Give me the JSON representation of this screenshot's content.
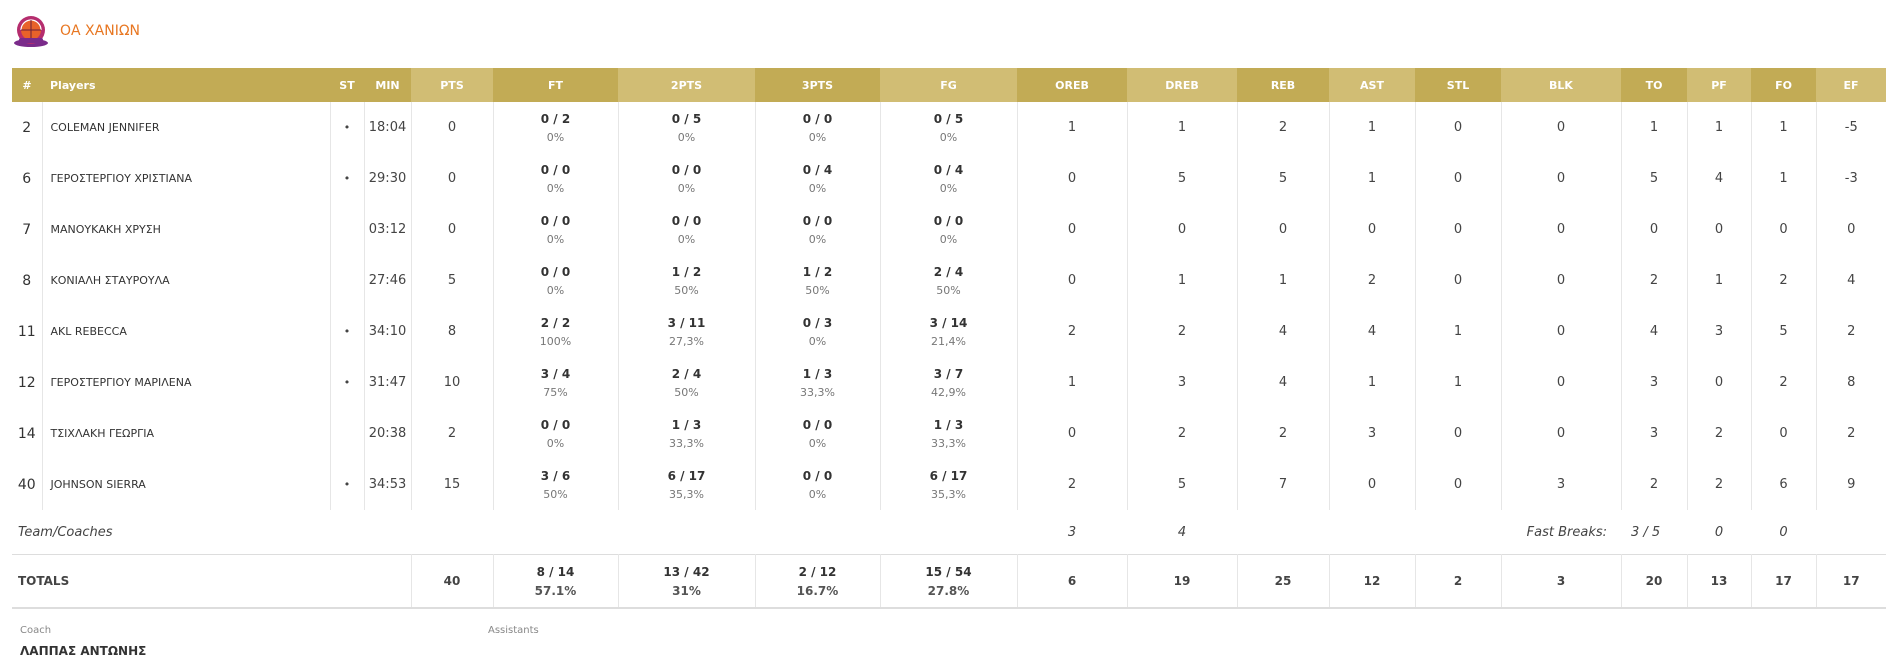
{
  "team": {
    "name": "ΟΑ ΧΑΝΙΩΝ"
  },
  "columns": [
    "#",
    "Players",
    "ST",
    "MIN",
    "PTS",
    "FT",
    "2PTS",
    "3PTS",
    "FG",
    "OREB",
    "DREB",
    "REB",
    "AST",
    "STL",
    "BLK",
    "TO",
    "PF",
    "FO",
    "EF"
  ],
  "players": [
    {
      "num": "2",
      "name": "COLEMAN JENNIFER",
      "st": "•",
      "min": "18:04",
      "pts": "0",
      "ft": "0 / 2",
      "ft_pct": "0%",
      "p2": "0 / 5",
      "p2_pct": "0%",
      "p3": "0 / 0",
      "p3_pct": "0%",
      "fg": "0 / 5",
      "fg_pct": "0%",
      "oreb": "1",
      "dreb": "1",
      "reb": "2",
      "ast": "1",
      "stl": "0",
      "blk": "0",
      "to": "1",
      "pf": "1",
      "fo": "1",
      "ef": "-5"
    },
    {
      "num": "6",
      "name": "ΓΕΡΟΣΤΕΡΓΙΟΥ ΧΡΙΣΤΙΑΝΑ",
      "st": "•",
      "min": "29:30",
      "pts": "0",
      "ft": "0 / 0",
      "ft_pct": "0%",
      "p2": "0 / 0",
      "p2_pct": "0%",
      "p3": "0 / 4",
      "p3_pct": "0%",
      "fg": "0 / 4",
      "fg_pct": "0%",
      "oreb": "0",
      "dreb": "5",
      "reb": "5",
      "ast": "1",
      "stl": "0",
      "blk": "0",
      "to": "5",
      "pf": "4",
      "fo": "1",
      "ef": "-3"
    },
    {
      "num": "7",
      "name": "ΜΑΝΟΥΚΑΚΗ ΧΡΥΣΗ",
      "st": "",
      "min": "03:12",
      "pts": "0",
      "ft": "0 / 0",
      "ft_pct": "0%",
      "p2": "0 / 0",
      "p2_pct": "0%",
      "p3": "0 / 0",
      "p3_pct": "0%",
      "fg": "0 / 0",
      "fg_pct": "0%",
      "oreb": "0",
      "dreb": "0",
      "reb": "0",
      "ast": "0",
      "stl": "0",
      "blk": "0",
      "to": "0",
      "pf": "0",
      "fo": "0",
      "ef": "0"
    },
    {
      "num": "8",
      "name": "ΚΟΝΙΑΛΗ ΣΤΑΥΡΟΥΛΑ",
      "st": "",
      "min": "27:46",
      "pts": "5",
      "ft": "0 / 0",
      "ft_pct": "0%",
      "p2": "1 / 2",
      "p2_pct": "50%",
      "p3": "1 / 2",
      "p3_pct": "50%",
      "fg": "2 / 4",
      "fg_pct": "50%",
      "oreb": "0",
      "dreb": "1",
      "reb": "1",
      "ast": "2",
      "stl": "0",
      "blk": "0",
      "to": "2",
      "pf": "1",
      "fo": "2",
      "ef": "4"
    },
    {
      "num": "11",
      "name": "AKL REBECCA",
      "st": "•",
      "min": "34:10",
      "pts": "8",
      "ft": "2 / 2",
      "ft_pct": "100%",
      "p2": "3 / 11",
      "p2_pct": "27,3%",
      "p3": "0 / 3",
      "p3_pct": "0%",
      "fg": "3 / 14",
      "fg_pct": "21,4%",
      "oreb": "2",
      "dreb": "2",
      "reb": "4",
      "ast": "4",
      "stl": "1",
      "blk": "0",
      "to": "4",
      "pf": "3",
      "fo": "5",
      "ef": "2"
    },
    {
      "num": "12",
      "name": "ΓΕΡΟΣΤΕΡΓΙΟΥ ΜΑΡΙΛΕΝΑ",
      "st": "•",
      "min": "31:47",
      "pts": "10",
      "ft": "3 / 4",
      "ft_pct": "75%",
      "p2": "2 / 4",
      "p2_pct": "50%",
      "p3": "1 / 3",
      "p3_pct": "33,3%",
      "fg": "3 / 7",
      "fg_pct": "42,9%",
      "oreb": "1",
      "dreb": "3",
      "reb": "4",
      "ast": "1",
      "stl": "1",
      "blk": "0",
      "to": "3",
      "pf": "0",
      "fo": "2",
      "ef": "8"
    },
    {
      "num": "14",
      "name": "ΤΣΙΧΛΑΚΗ ΓΕΩΡΓΙΑ",
      "st": "",
      "min": "20:38",
      "pts": "2",
      "ft": "0 / 0",
      "ft_pct": "0%",
      "p2": "1 / 3",
      "p2_pct": "33,3%",
      "p3": "0 / 0",
      "p3_pct": "0%",
      "fg": "1 / 3",
      "fg_pct": "33,3%",
      "oreb": "0",
      "dreb": "2",
      "reb": "2",
      "ast": "3",
      "stl": "0",
      "blk": "0",
      "to": "3",
      "pf": "2",
      "fo": "0",
      "ef": "2"
    },
    {
      "num": "40",
      "name": "JOHNSON SIERRA",
      "st": "•",
      "min": "34:53",
      "pts": "15",
      "ft": "3 / 6",
      "ft_pct": "50%",
      "p2": "6 / 17",
      "p2_pct": "35,3%",
      "p3": "0 / 0",
      "p3_pct": "0%",
      "fg": "6 / 17",
      "fg_pct": "35,3%",
      "oreb": "2",
      "dreb": "5",
      "reb": "7",
      "ast": "0",
      "stl": "0",
      "blk": "3",
      "to": "2",
      "pf": "2",
      "fo": "6",
      "ef": "9"
    }
  ],
  "team_row": {
    "label": "Team/Coaches",
    "oreb": "3",
    "dreb": "4",
    "fast_breaks_label": "Fast Breaks:",
    "fast_breaks_value": "3 / 5",
    "to": "0",
    "pf": "0"
  },
  "totals": {
    "label": "TOTALS",
    "pts": "40",
    "ft": "8 / 14",
    "ft_pct": "57.1%",
    "p2": "13 / 42",
    "p2_pct": "31%",
    "p3": "2 / 12",
    "p3_pct": "16.7%",
    "fg": "15 / 54",
    "fg_pct": "27.8%",
    "oreb": "6",
    "dreb": "19",
    "reb": "25",
    "ast": "12",
    "stl": "2",
    "blk": "3",
    "to": "20",
    "pf": "13",
    "fo": "17",
    "ef": "17"
  },
  "staff": {
    "coach_label": "Coach",
    "coach_name": "ΛΑΠΠΑΣ ΑΝΤΩΝΗΣ",
    "assistants_label": "Assistants"
  },
  "colors": {
    "header_dark": "#c2ab55",
    "header_light": "#d1bd74",
    "team_name": "#e87722"
  }
}
